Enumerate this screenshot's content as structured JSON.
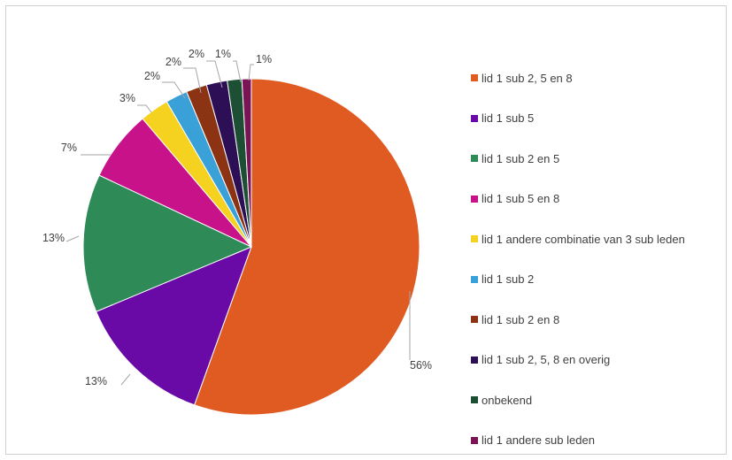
{
  "chart_data": {
    "type": "pie",
    "title": "",
    "legend_position": "right",
    "slices": [
      {
        "label": "lid 1 sub 2, 5 en 8",
        "value": 55.5,
        "display": "56%",
        "color": "#e05b22"
      },
      {
        "label": "lid 1 sub 5",
        "value": 13.2,
        "display": "13%",
        "color": "#6a0aa6"
      },
      {
        "label": "lid 1 sub 2 en 5",
        "value": 13.3,
        "display": "13%",
        "color": "#2e8a57"
      },
      {
        "label": "lid 1 sub 5 en 8",
        "value": 6.8,
        "display": "7%",
        "color": "#c8128a"
      },
      {
        "label": "lid 1 andere combinatie van 3 sub leden",
        "value": 2.8,
        "display": "3%",
        "color": "#f4d21f"
      },
      {
        "label": "lid 1 sub 2",
        "value": 2.1,
        "display": "2%",
        "color": "#3aa0d8"
      },
      {
        "label": "lid 1 sub 2 en 8",
        "value": 2.0,
        "display": "2%",
        "color": "#8b3312"
      },
      {
        "label": "lid 1 sub 2, 5, 8 en overig",
        "value": 2.0,
        "display": "2%",
        "color": "#2c0f55"
      },
      {
        "label": "onbekend",
        "value": 1.4,
        "display": "1%",
        "color": "#1c4f33"
      },
      {
        "label": "lid 1 andere sub leden",
        "value": 0.9,
        "display": "1%",
        "color": "#7a1454"
      }
    ]
  }
}
